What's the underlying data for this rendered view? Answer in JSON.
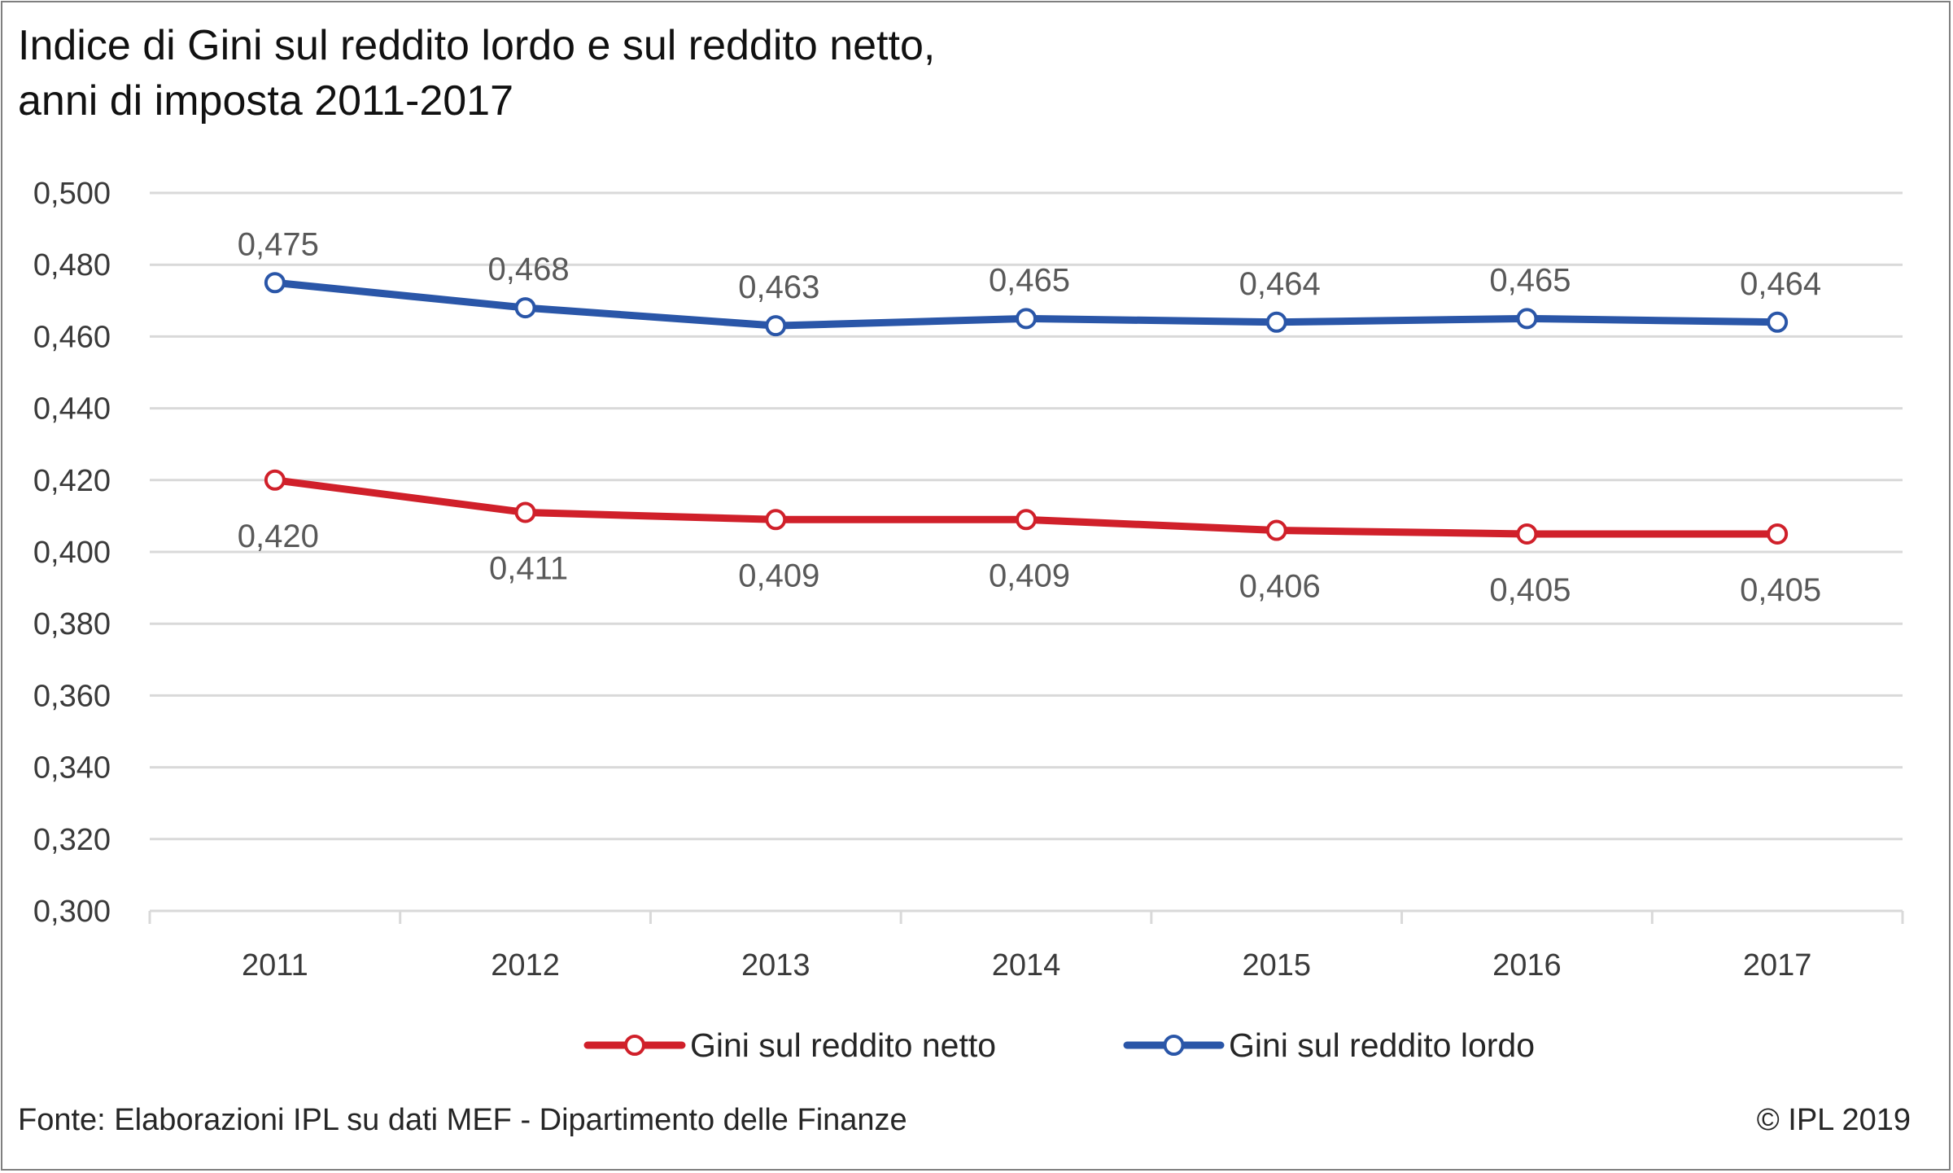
{
  "title_line1": "Indice di Gini sul reddito lordo e sul reddito netto,",
  "title_line2": "anni di imposta 2011-2017",
  "source": "Fonte: Elaborazioni IPL su dati MEF - Dipartimento delle Finanze",
  "copyright": "© IPL 2019",
  "colors": {
    "netto": "#d0202a",
    "lordo": "#2a56a8",
    "grid": "#d9d9d9"
  },
  "chart_data": {
    "type": "line",
    "x": [
      "2011",
      "2012",
      "2013",
      "2014",
      "2015",
      "2016",
      "2017"
    ],
    "ylim": [
      0.3,
      0.5
    ],
    "yticks": [
      "0,300",
      "0,320",
      "0,340",
      "0,360",
      "0,380",
      "0,400",
      "0,420",
      "0,440",
      "0,460",
      "0,480",
      "0,500"
    ],
    "grid": true,
    "legend": "bottom",
    "series": [
      {
        "name": "Gini sul reddito netto",
        "values": [
          0.42,
          0.411,
          0.409,
          0.409,
          0.406,
          0.405,
          0.405
        ],
        "labels": [
          "0,420",
          "0,411",
          "0,409",
          "0,409",
          "0,406",
          "0,405",
          "0,405"
        ]
      },
      {
        "name": "Gini sul reddito lordo",
        "values": [
          0.475,
          0.468,
          0.463,
          0.465,
          0.464,
          0.465,
          0.464
        ],
        "labels": [
          "0,475",
          "0,468",
          "0,463",
          "0,465",
          "0,464",
          "0,465",
          "0,464"
        ]
      }
    ]
  }
}
